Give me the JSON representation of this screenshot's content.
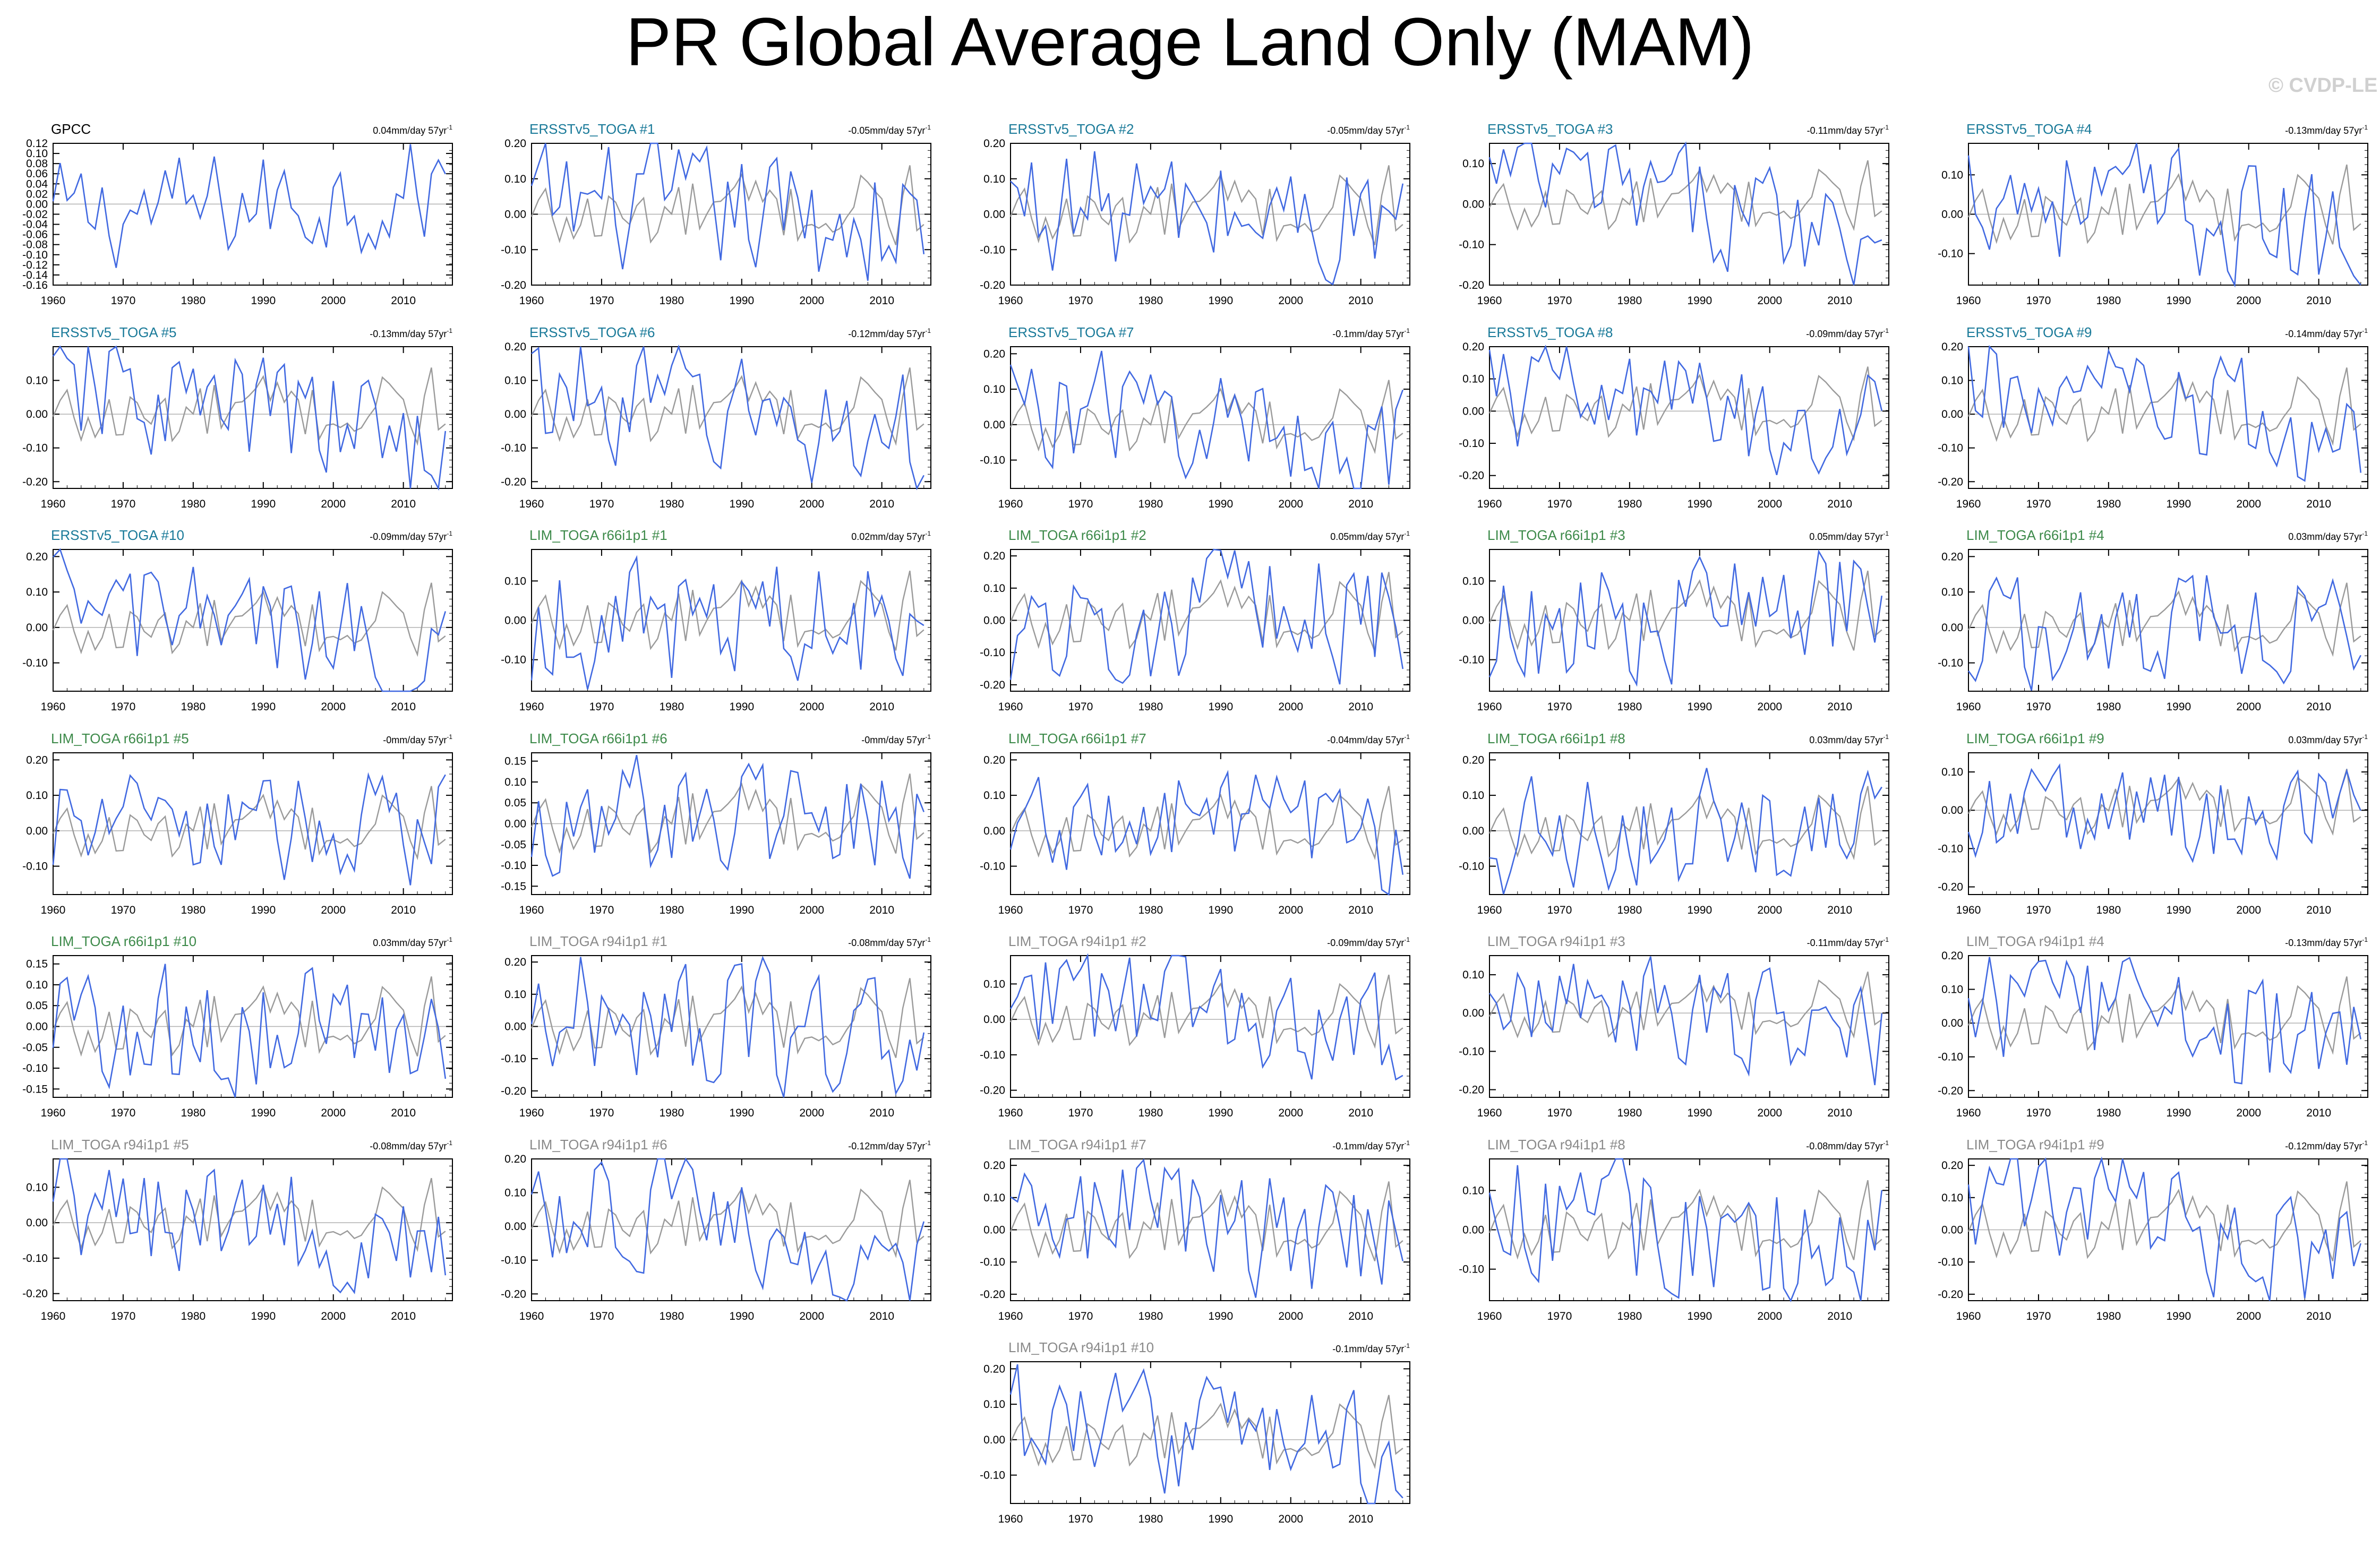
{
  "title": "PR Global Average Land Only (MAM)",
  "watermark": "© CVDP-LE",
  "colors": {
    "obs": "#000000",
    "ensemble": "#4169e1",
    "reference": "#9a9a9a",
    "ersst_label": "#1a7a99",
    "lim66_label": "#3d8a4a",
    "lim94_label": "#8a8a8a"
  },
  "chart_data": [
    {
      "type": "line",
      "title": "GPCC",
      "trend": "0.04mm/day 57yr",
      "label_color": "#000000",
      "yticks": [
        "0.12",
        "0.10",
        "0.08",
        "0.06",
        "0.04",
        "0.02",
        "0.00",
        "-0.02",
        "-0.04",
        "-0.06",
        "-0.08",
        "-0.10",
        "-0.12",
        "-0.14",
        "-0.16"
      ],
      "ylim": [
        -0.16,
        0.12
      ],
      "xticks": [
        "1960",
        "1970",
        "1980",
        "1990",
        "2000",
        "2010"
      ],
      "xlim": [
        1960,
        2017
      ],
      "series": [
        {
          "name": "GPCC",
          "color": "#4169e1"
        }
      ]
    },
    {
      "type": "line",
      "title": "ERSSTv5_TOGA #1",
      "trend": "-0.05mm/day 57yr",
      "label_color": "#1a7a99",
      "yticks": [
        "0.20",
        "0.10",
        "0.00",
        "-0.10",
        "-0.20"
      ],
      "ylim": [
        -0.2,
        0.2
      ],
      "xticks": [
        "1960",
        "1970",
        "1980",
        "1990",
        "2000",
        "2010"
      ],
      "xlim": [
        1960,
        2017
      ]
    },
    {
      "type": "line",
      "title": "ERSSTv5_TOGA #2",
      "trend": "-0.05mm/day 57yr",
      "label_color": "#1a7a99",
      "yticks": [
        "0.20",
        "0.10",
        "0.00",
        "-0.10",
        "-0.20"
      ],
      "ylim": [
        -0.2,
        0.2
      ],
      "xticks": [
        "1960",
        "1970",
        "1980",
        "1990",
        "2000",
        "2010"
      ],
      "xlim": [
        1960,
        2017
      ]
    },
    {
      "type": "line",
      "title": "ERSSTv5_TOGA #3",
      "trend": "-0.11mm/day 57yr",
      "label_color": "#1a7a99",
      "yticks": [
        "0.10",
        "0.00",
        "-0.10",
        "-0.20"
      ],
      "ylim": [
        -0.2,
        0.15
      ],
      "xticks": [
        "1960",
        "1970",
        "1980",
        "1990",
        "2000",
        "2010"
      ],
      "xlim": [
        1960,
        2017
      ]
    },
    {
      "type": "line",
      "title": "ERSSTv5_TOGA #4",
      "trend": "-0.13mm/day 57yr",
      "label_color": "#1a7a99",
      "yticks": [
        "0.10",
        "0.00",
        "-0.10"
      ],
      "ylim": [
        -0.18,
        0.18
      ],
      "xticks": [
        "1960",
        "1970",
        "1980",
        "1990",
        "2000",
        "2010"
      ],
      "xlim": [
        1960,
        2017
      ]
    },
    {
      "type": "line",
      "title": "ERSSTv5_TOGA #5",
      "trend": "-0.13mm/day 57yr",
      "label_color": "#1a7a99",
      "yticks": [
        "0.10",
        "0.00",
        "-0.10",
        "-0.20"
      ],
      "ylim": [
        -0.22,
        0.2
      ],
      "xticks": [
        "1960",
        "1970",
        "1980",
        "1990",
        "2000",
        "2010"
      ],
      "xlim": [
        1960,
        2017
      ]
    },
    {
      "type": "line",
      "title": "ERSSTv5_TOGA #6",
      "trend": "-0.12mm/day 57yr",
      "label_color": "#1a7a99",
      "yticks": [
        "0.20",
        "0.10",
        "0.00",
        "-0.10",
        "-0.20"
      ],
      "ylim": [
        -0.22,
        0.2
      ],
      "xticks": [
        "1960",
        "1970",
        "1980",
        "1990",
        "2000",
        "2010"
      ],
      "xlim": [
        1960,
        2017
      ]
    },
    {
      "type": "line",
      "title": "ERSSTv5_TOGA #7",
      "trend": "-0.1mm/day 57yr",
      "label_color": "#1a7a99",
      "yticks": [
        "0.20",
        "0.10",
        "0.00",
        "-0.10"
      ],
      "ylim": [
        -0.18,
        0.22
      ],
      "xticks": [
        "1960",
        "1970",
        "1980",
        "1990",
        "2000",
        "2010"
      ],
      "xlim": [
        1960,
        2017
      ]
    },
    {
      "type": "line",
      "title": "ERSSTv5_TOGA #8",
      "trend": "-0.09mm/day 57yr",
      "label_color": "#1a7a99",
      "yticks": [
        "0.20",
        "0.10",
        "0.00",
        "-0.10",
        "-0.20"
      ],
      "ylim": [
        -0.24,
        0.2
      ],
      "xticks": [
        "1960",
        "1970",
        "1980",
        "1990",
        "2000",
        "2010"
      ],
      "xlim": [
        1960,
        2017
      ]
    },
    {
      "type": "line",
      "title": "ERSSTv5_TOGA #9",
      "trend": "-0.14mm/day 57yr",
      "label_color": "#1a7a99",
      "yticks": [
        "0.20",
        "0.10",
        "0.00",
        "-0.10",
        "-0.20"
      ],
      "ylim": [
        -0.22,
        0.2
      ],
      "xticks": [
        "1960",
        "1970",
        "1980",
        "1990",
        "2000",
        "2010"
      ],
      "xlim": [
        1960,
        2017
      ]
    },
    {
      "type": "line",
      "title": "ERSSTv5_TOGA #10",
      "trend": "-0.09mm/day 57yr",
      "label_color": "#1a7a99",
      "yticks": [
        "0.20",
        "0.10",
        "0.00",
        "-0.10"
      ],
      "ylim": [
        -0.18,
        0.22
      ],
      "xticks": [
        "1960",
        "1970",
        "1980",
        "1990",
        "2000",
        "2010"
      ],
      "xlim": [
        1960,
        2017
      ]
    },
    {
      "type": "line",
      "title": "LIM_TOGA r66i1p1 #1",
      "trend": "0.02mm/day 57yr",
      "label_color": "#3d8a4a",
      "yticks": [
        "0.10",
        "0.00",
        "-0.10"
      ],
      "ylim": [
        -0.18,
        0.18
      ],
      "xticks": [
        "1960",
        "1970",
        "1980",
        "1990",
        "2000",
        "2010"
      ],
      "xlim": [
        1960,
        2017
      ]
    },
    {
      "type": "line",
      "title": "LIM_TOGA r66i1p1 #2",
      "trend": "0.05mm/day 57yr",
      "label_color": "#3d8a4a",
      "yticks": [
        "0.20",
        "0.10",
        "0.00",
        "-0.10",
        "-0.20"
      ],
      "ylim": [
        -0.22,
        0.22
      ],
      "xticks": [
        "1960",
        "1970",
        "1980",
        "1990",
        "2000",
        "2010"
      ],
      "xlim": [
        1960,
        2017
      ]
    },
    {
      "type": "line",
      "title": "LIM_TOGA r66i1p1 #3",
      "trend": "0.05mm/day 57yr",
      "label_color": "#3d8a4a",
      "yticks": [
        "0.10",
        "0.00",
        "-0.10"
      ],
      "ylim": [
        -0.18,
        0.18
      ],
      "xticks": [
        "1960",
        "1970",
        "1980",
        "1990",
        "2000",
        "2010"
      ],
      "xlim": [
        1960,
        2017
      ]
    },
    {
      "type": "line",
      "title": "LIM_TOGA r66i1p1 #4",
      "trend": "0.03mm/day 57yr",
      "label_color": "#3d8a4a",
      "yticks": [
        "0.20",
        "0.10",
        "0.00",
        "-0.10"
      ],
      "ylim": [
        -0.18,
        0.22
      ],
      "xticks": [
        "1960",
        "1970",
        "1980",
        "1990",
        "2000",
        "2010"
      ],
      "xlim": [
        1960,
        2017
      ]
    },
    {
      "type": "line",
      "title": "LIM_TOGA r66i1p1 #5",
      "trend": "-0mm/day 57yr",
      "label_color": "#3d8a4a",
      "yticks": [
        "0.20",
        "0.10",
        "0.00",
        "-0.10"
      ],
      "ylim": [
        -0.18,
        0.22
      ],
      "xticks": [
        "1960",
        "1970",
        "1980",
        "1990",
        "2000",
        "2010"
      ],
      "xlim": [
        1960,
        2017
      ]
    },
    {
      "type": "line",
      "title": "LIM_TOGA r66i1p1 #6",
      "trend": "-0mm/day 57yr",
      "label_color": "#3d8a4a",
      "yticks": [
        "0.15",
        "0.10",
        "0.05",
        "0.00",
        "-0.05",
        "-0.10",
        "-0.15"
      ],
      "ylim": [
        -0.17,
        0.17
      ],
      "xticks": [
        "1960",
        "1970",
        "1980",
        "1990",
        "2000",
        "2010"
      ],
      "xlim": [
        1960,
        2017
      ]
    },
    {
      "type": "line",
      "title": "LIM_TOGA r66i1p1 #7",
      "trend": "-0.04mm/day 57yr",
      "label_color": "#3d8a4a",
      "yticks": [
        "0.20",
        "0.10",
        "0.00",
        "-0.10"
      ],
      "ylim": [
        -0.18,
        0.22
      ],
      "xticks": [
        "1960",
        "1970",
        "1980",
        "1990",
        "2000",
        "2010"
      ],
      "xlim": [
        1960,
        2017
      ]
    },
    {
      "type": "line",
      "title": "LIM_TOGA r66i1p1 #8",
      "trend": "0.03mm/day 57yr",
      "label_color": "#3d8a4a",
      "yticks": [
        "0.20",
        "0.10",
        "0.00",
        "-0.10"
      ],
      "ylim": [
        -0.18,
        0.22
      ],
      "xticks": [
        "1960",
        "1970",
        "1980",
        "1990",
        "2000",
        "2010"
      ],
      "xlim": [
        1960,
        2017
      ]
    },
    {
      "type": "line",
      "title": "LIM_TOGA r66i1p1 #9",
      "trend": "0.03mm/day 57yr",
      "label_color": "#3d8a4a",
      "yticks": [
        "0.10",
        "0.00",
        "-0.10",
        "-0.20"
      ],
      "ylim": [
        -0.22,
        0.15
      ],
      "xticks": [
        "1960",
        "1970",
        "1980",
        "1990",
        "2000",
        "2010"
      ],
      "xlim": [
        1960,
        2017
      ]
    },
    {
      "type": "line",
      "title": "LIM_TOGA r66i1p1 #10",
      "trend": "0.03mm/day 57yr",
      "label_color": "#3d8a4a",
      "yticks": [
        "0.15",
        "0.10",
        "0.05",
        "0.00",
        "-0.05",
        "-0.10",
        "-0.15"
      ],
      "ylim": [
        -0.17,
        0.17
      ],
      "xticks": [
        "1960",
        "1970",
        "1980",
        "1990",
        "2000",
        "2010"
      ],
      "xlim": [
        1960,
        2017
      ]
    },
    {
      "type": "line",
      "title": "LIM_TOGA r94i1p1 #1",
      "trend": "-0.08mm/day 57yr",
      "label_color": "#8a8a8a",
      "yticks": [
        "0.20",
        "0.10",
        "0.00",
        "-0.10",
        "-0.20"
      ],
      "ylim": [
        -0.22,
        0.22
      ],
      "xticks": [
        "1960",
        "1970",
        "1980",
        "1990",
        "2000",
        "2010"
      ],
      "xlim": [
        1960,
        2017
      ]
    },
    {
      "type": "line",
      "title": "LIM_TOGA r94i1p1 #2",
      "trend": "-0.09mm/day 57yr",
      "label_color": "#8a8a8a",
      "yticks": [
        "0.10",
        "0.00",
        "-0.10",
        "-0.20"
      ],
      "ylim": [
        -0.22,
        0.18
      ],
      "xticks": [
        "1960",
        "1970",
        "1980",
        "1990",
        "2000",
        "2010"
      ],
      "xlim": [
        1960,
        2017
      ]
    },
    {
      "type": "line",
      "title": "LIM_TOGA r94i1p1 #3",
      "trend": "-0.11mm/day 57yr",
      "label_color": "#8a8a8a",
      "yticks": [
        "0.10",
        "0.00",
        "-0.10",
        "-0.20"
      ],
      "ylim": [
        -0.22,
        0.15
      ],
      "xticks": [
        "1960",
        "1970",
        "1980",
        "1990",
        "2000",
        "2010"
      ],
      "xlim": [
        1960,
        2017
      ]
    },
    {
      "type": "line",
      "title": "LIM_TOGA r94i1p1 #4",
      "trend": "-0.13mm/day 57yr",
      "label_color": "#8a8a8a",
      "yticks": [
        "0.20",
        "0.10",
        "0.00",
        "-0.10",
        "-0.20"
      ],
      "ylim": [
        -0.22,
        0.2
      ],
      "xticks": [
        "1960",
        "1970",
        "1980",
        "1990",
        "2000",
        "2010"
      ],
      "xlim": [
        1960,
        2017
      ]
    },
    {
      "type": "line",
      "title": "LIM_TOGA r94i1p1 #5",
      "trend": "-0.08mm/day 57yr",
      "label_color": "#8a8a8a",
      "yticks": [
        "0.10",
        "0.00",
        "-0.10",
        "-0.20"
      ],
      "ylim": [
        -0.22,
        0.18
      ],
      "xticks": [
        "1960",
        "1970",
        "1980",
        "1990",
        "2000",
        "2010"
      ],
      "xlim": [
        1960,
        2017
      ]
    },
    {
      "type": "line",
      "title": "LIM_TOGA r94i1p1 #6",
      "trend": "-0.12mm/day 57yr",
      "label_color": "#8a8a8a",
      "yticks": [
        "0.20",
        "0.10",
        "0.00",
        "-0.10",
        "-0.20"
      ],
      "ylim": [
        -0.22,
        0.2
      ],
      "xticks": [
        "1960",
        "1970",
        "1980",
        "1990",
        "2000",
        "2010"
      ],
      "xlim": [
        1960,
        2017
      ]
    },
    {
      "type": "line",
      "title": "LIM_TOGA r94i1p1 #7",
      "trend": "-0.1mm/day 57yr",
      "label_color": "#8a8a8a",
      "yticks": [
        "0.20",
        "0.10",
        "0.00",
        "-0.10",
        "-0.20"
      ],
      "ylim": [
        -0.22,
        0.22
      ],
      "xticks": [
        "1960",
        "1970",
        "1980",
        "1990",
        "2000",
        "2010"
      ],
      "xlim": [
        1960,
        2017
      ]
    },
    {
      "type": "line",
      "title": "LIM_TOGA r94i1p1 #8",
      "trend": "-0.08mm/day 57yr",
      "label_color": "#8a8a8a",
      "yticks": [
        "0.10",
        "0.00",
        "-0.10"
      ],
      "ylim": [
        -0.18,
        0.18
      ],
      "xticks": [
        "1960",
        "1970",
        "1980",
        "1990",
        "2000",
        "2010"
      ],
      "xlim": [
        1960,
        2017
      ]
    },
    {
      "type": "line",
      "title": "LIM_TOGA r94i1p1 #9",
      "trend": "-0.12mm/day 57yr",
      "label_color": "#8a8a8a",
      "yticks": [
        "0.20",
        "0.10",
        "0.00",
        "-0.10",
        "-0.20"
      ],
      "ylim": [
        -0.22,
        0.22
      ],
      "xticks": [
        "1960",
        "1970",
        "1980",
        "1990",
        "2000",
        "2010"
      ],
      "xlim": [
        1960,
        2017
      ]
    },
    {
      "type": "line",
      "title": "LIM_TOGA r94i1p1 #10",
      "trend": "-0.1mm/day 57yr",
      "label_color": "#8a8a8a",
      "yticks": [
        "0.20",
        "0.10",
        "0.00",
        "-0.10"
      ],
      "ylim": [
        -0.18,
        0.22
      ],
      "xticks": [
        "1960",
        "1970",
        "1980",
        "1990",
        "2000",
        "2010"
      ],
      "xlim": [
        1960,
        2017
      ]
    }
  ]
}
